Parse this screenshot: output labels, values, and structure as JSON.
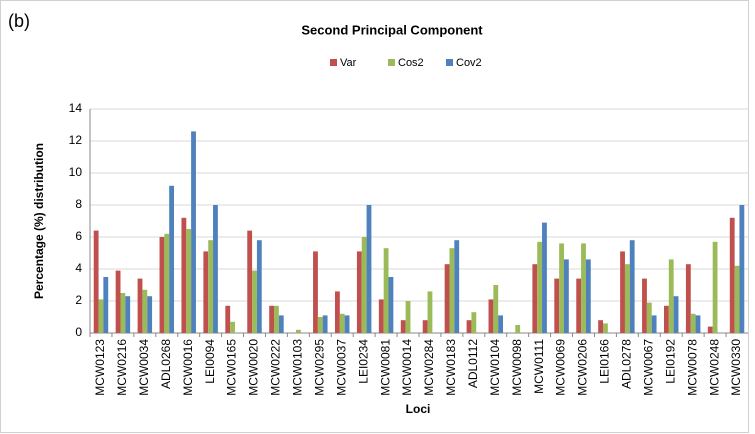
{
  "chart_data": {
    "type": "bar",
    "panel_label": "(b)",
    "title": "Second Principal Component",
    "x_label": "Loci",
    "y_label": "Percentage (%) distribution",
    "categories": [
      "MCW0123",
      "MCW0216",
      "MCW0034",
      "ADL0268",
      "MCW0016",
      "LEI0094",
      "MCW0165",
      "MCW0020",
      "MCW0222",
      "MCW0103",
      "MCW0295",
      "MCW0037",
      "LEI0234",
      "MCW0081",
      "MCW0014",
      "MCW0284",
      "MCW0183",
      "ADL0112",
      "MCW0104",
      "MCW0098",
      "MCW0111",
      "MCW0069",
      "MCW0206",
      "LEI0166",
      "ADL0278",
      "MCW0067",
      "LEI0192",
      "MCW0078",
      "MCW0248",
      "MCW0330"
    ],
    "series": [
      {
        "name": "Var",
        "color": "#c0504d",
        "values": [
          6.4,
          3.9,
          3.4,
          6.0,
          7.2,
          5.1,
          1.7,
          6.4,
          1.7,
          0,
          5.1,
          2.6,
          5.1,
          2.1,
          0.8,
          0.8,
          4.3,
          0.8,
          2.1,
          0,
          4.3,
          3.4,
          3.4,
          0.8,
          5.1,
          3.4,
          1.7,
          4.3,
          0.4,
          7.2
        ]
      },
      {
        "name": "Cos2",
        "color": "#9bbb59",
        "values": [
          2.1,
          2.5,
          2.7,
          6.2,
          6.5,
          5.8,
          0.7,
          3.9,
          1.7,
          0.2,
          1.0,
          1.2,
          6.0,
          5.3,
          2.0,
          2.6,
          5.3,
          1.3,
          3.0,
          0.5,
          5.7,
          5.6,
          5.6,
          0.6,
          4.3,
          1.9,
          4.6,
          1.2,
          5.7,
          4.2
        ]
      },
      {
        "name": "Cov2",
        "color": "#4f81bd",
        "values": [
          3.5,
          2.3,
          2.3,
          9.2,
          12.6,
          8.0,
          0,
          5.8,
          1.1,
          0,
          1.1,
          1.1,
          8.0,
          3.5,
          0,
          0,
          5.8,
          0,
          1.1,
          0,
          6.9,
          4.6,
          4.6,
          0,
          5.8,
          1.1,
          2.3,
          1.1,
          0,
          8.0
        ]
      }
    ],
    "ylim": [
      0,
      14
    ],
    "yticks": [
      0,
      2,
      4,
      6,
      8,
      10,
      12,
      14
    ],
    "grid": true,
    "legend": "top"
  }
}
